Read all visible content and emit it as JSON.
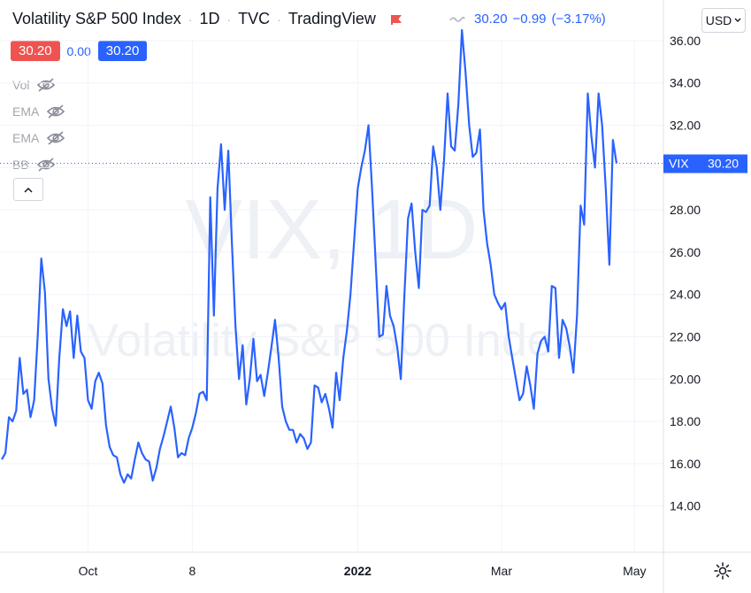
{
  "header": {
    "title": "Volatility S&P 500 Index",
    "interval": "1D",
    "exchange": "TVC",
    "source": "TradingView",
    "last_price": "30.20",
    "change": "−0.99",
    "change_pct": "(−3.17%)",
    "currency": "USD"
  },
  "price_boxes": {
    "sell": "30.20",
    "spread": "0.00",
    "buy": "30.20"
  },
  "indicators": [
    {
      "label": "Vol",
      "icon": "eye-hidden-icon"
    },
    {
      "label": "EMA",
      "icon": "eye-hidden-icon"
    },
    {
      "label": "EMA",
      "icon": "eye-hidden-icon"
    },
    {
      "label": "BB",
      "icon": "eye-hidden-icon"
    }
  ],
  "watermark": {
    "symbol": "VIX, 1D",
    "name": "Volatility S&P 500 Index"
  },
  "price_label": {
    "symbol": "VIX",
    "value": "30.20"
  },
  "colors": {
    "line": "#2962ff",
    "price_badge": "#2962ff",
    "red_box": "#ef5350",
    "grid": "#e0e3eb"
  },
  "chart_data": {
    "type": "line",
    "series": [
      {
        "values": [
          16.2,
          16.5,
          18.2,
          18.0,
          18.5,
          21.0,
          19.3,
          19.5,
          18.2,
          19.0,
          22.0,
          25.7,
          24.1,
          20.0,
          18.6,
          17.8,
          21.0,
          23.3,
          22.5,
          23.2,
          21.0,
          23.0,
          21.3,
          21.0,
          19.0,
          18.6,
          19.9,
          20.3,
          19.8,
          17.8,
          16.8,
          16.4,
          16.3,
          15.5,
          15.1,
          15.5,
          15.3,
          16.2,
          17.0,
          16.5,
          16.2,
          16.1,
          15.2,
          15.8,
          16.7,
          17.3,
          18.0,
          18.7,
          17.7,
          16.3,
          16.5,
          16.4,
          17.2,
          17.7,
          18.4,
          19.3,
          19.4,
          19.0,
          28.6,
          23.0,
          29.0,
          31.1,
          28.0,
          30.8,
          26.5,
          22.5,
          20.0,
          21.6,
          18.8,
          20.0,
          21.9,
          19.9,
          20.2,
          19.2,
          20.3,
          21.5,
          22.8,
          21.0,
          18.7,
          18.0,
          17.6,
          17.6,
          17.0,
          17.4,
          17.2,
          16.7,
          17.0,
          19.7,
          19.6,
          18.9,
          19.3,
          18.6,
          17.7,
          20.3,
          19.0,
          21.0,
          22.3,
          24.0,
          26.5,
          29.0,
          30.0,
          30.8,
          32.0,
          29.0,
          25.5,
          22.0,
          22.1,
          24.4,
          23.0,
          22.5,
          21.5,
          20.0,
          24.0,
          27.6,
          28.3,
          26.0,
          24.3,
          28.0,
          27.9,
          28.2,
          31.0,
          30.0,
          28.0,
          30.3,
          33.5,
          31.0,
          30.8,
          33.0,
          36.5,
          34.5,
          32.0,
          30.5,
          30.7,
          31.8,
          28.0,
          26.4,
          25.4,
          24.0,
          23.6,
          23.3,
          23.6,
          22.0,
          21.0,
          20.0,
          19.0,
          19.3,
          20.6,
          19.7,
          18.6,
          21.2,
          21.8,
          22.0,
          21.3,
          24.4,
          24.3,
          21.0,
          22.8,
          22.4,
          21.5,
          20.3,
          23.0,
          28.2,
          27.3,
          33.5,
          31.5,
          30.0,
          33.5,
          32.0,
          29.0,
          25.4,
          31.3,
          30.2
        ],
        "last": 30.2
      }
    ],
    "x_labels": [
      "Oct",
      "8",
      "2022",
      "Mar",
      "May"
    ],
    "ylim": [
      13.0,
      37.0
    ],
    "y_ticks": [
      14.0,
      16.0,
      18.0,
      20.0,
      22.0,
      24.0,
      26.0,
      28.0,
      30.0,
      32.0,
      34.0,
      36.0
    ],
    "grid": true
  }
}
